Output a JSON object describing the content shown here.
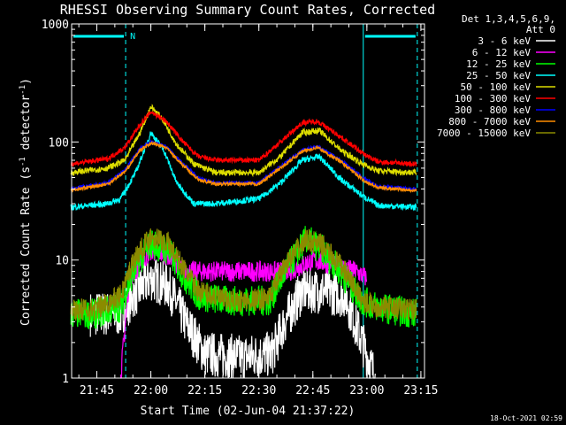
{
  "chart_data": {
    "type": "line",
    "title": "RHESSI Observing Summary Count Rates, Corrected",
    "xlabel": "Start Time (02-Jun-04 21:37:22)",
    "ylabel_prefix": "Corrected Count Rate (s",
    "ylabel_sup1": "-1",
    "ylabel_mid": " detector",
    "ylabel_sup2": "-1",
    "ylabel_suffix": ")",
    "yscale": "log",
    "ylim": [
      1,
      1000
    ],
    "xlim_minutes": [
      21.6333,
      23.2667
    ],
    "xticks": [
      {
        "label": "21:45",
        "value": 21.75
      },
      {
        "label": "22:00",
        "value": 22.0
      },
      {
        "label": "22:15",
        "value": 22.25
      },
      {
        "label": "22:30",
        "value": 22.5
      },
      {
        "label": "22:45",
        "value": 22.75
      },
      {
        "label": "23:00",
        "value": 23.0
      },
      {
        "label": "23:15",
        "value": 23.25
      }
    ],
    "yticks": [
      {
        "label": "1000",
        "value": 1000
      },
      {
        "label": "100",
        "value": 100
      },
      {
        "label": "10",
        "value": 10
      },
      {
        "label": "1",
        "value": 1
      }
    ],
    "legend_header": [
      "Det 1,3,4,5,6,9,",
      "Att 0"
    ],
    "legend_position": "top-right",
    "timestamp": "18-Oct-2021 02:59",
    "night_marker": "N",
    "night_intervals": [
      [
        21.6333,
        21.8833
      ],
      [
        22.9833,
        23.2333
      ]
    ],
    "vertical_lines": [
      21.6333,
      21.8833,
      22.9833,
      23.2333
    ],
    "series": [
      {
        "name": "3 - 6 keV",
        "color": "#ffffff",
        "key_x": [
          21.72,
          21.86,
          21.92,
          22.0,
          22.08,
          22.16,
          22.25,
          22.42,
          22.56,
          22.62,
          22.7,
          22.8,
          22.9,
          22.96,
          23.04
        ],
        "key_y": [
          3.5,
          3.5,
          5,
          7,
          6,
          3,
          1.6,
          1.5,
          1.6,
          3,
          5.5,
          5.5,
          5,
          2.5,
          1
        ]
      },
      {
        "name": "6 - 12 keV",
        "color": "#ff00ff",
        "key_x": [
          21.86,
          21.9,
          22.0,
          22.08,
          22.16,
          22.4,
          22.56,
          22.64,
          22.75,
          22.85,
          22.95,
          23.0
        ],
        "key_y": [
          1,
          7,
          12,
          11,
          8,
          8,
          8,
          8,
          10,
          9,
          8,
          7
        ]
      },
      {
        "name": "12 - 25 keV",
        "color": "#00ff00",
        "key_x": [
          21.63,
          21.74,
          21.86,
          21.92,
          22.0,
          22.08,
          22.16,
          22.22,
          22.35,
          22.45,
          22.55,
          22.62,
          22.72,
          22.8,
          22.9,
          22.98,
          23.05,
          23.23
        ],
        "key_y": [
          3.5,
          3.5,
          4,
          8,
          14,
          12,
          7,
          5,
          4.5,
          4.5,
          4.5,
          8,
          15,
          12,
          7,
          4.5,
          4,
          3.5
        ]
      },
      {
        "name": "25 - 50 keV",
        "color": "#00ffff",
        "key_x": [
          21.63,
          21.8,
          21.86,
          21.93,
          22.0,
          22.06,
          22.12,
          22.2,
          22.3,
          22.5,
          22.6,
          22.7,
          22.78,
          22.88,
          22.98,
          23.05,
          23.23
        ],
        "key_y": [
          28,
          30,
          33,
          55,
          120,
          85,
          45,
          30,
          30,
          33,
          45,
          70,
          75,
          48,
          35,
          29,
          28
        ]
      },
      {
        "name": "50 - 100 keV",
        "color": "#dddd00",
        "key_x": [
          21.63,
          21.8,
          21.88,
          21.95,
          22.0,
          22.05,
          22.12,
          22.2,
          22.3,
          22.5,
          22.6,
          22.7,
          22.78,
          22.88,
          22.98,
          23.05,
          23.23
        ],
        "key_y": [
          55,
          60,
          70,
          120,
          200,
          160,
          95,
          65,
          55,
          55,
          75,
          120,
          125,
          85,
          65,
          57,
          55
        ]
      },
      {
        "name": "100 - 300 keV",
        "color": "#ff0000",
        "key_x": [
          21.63,
          21.8,
          21.88,
          21.95,
          22.0,
          22.07,
          22.15,
          22.22,
          22.3,
          22.5,
          22.6,
          22.7,
          22.77,
          22.88,
          22.98,
          23.05,
          23.23
        ],
        "key_y": [
          65,
          72,
          90,
          140,
          180,
          150,
          100,
          75,
          70,
          70,
          100,
          145,
          150,
          110,
          80,
          68,
          65
        ]
      },
      {
        "name": "300 - 800 keV",
        "color": "#0000ff",
        "key_x": [
          21.63,
          21.8,
          21.88,
          21.95,
          22.0,
          22.07,
          22.15,
          22.22,
          22.3,
          22.5,
          22.6,
          22.7,
          22.77,
          22.88,
          22.98,
          23.05,
          23.23
        ],
        "key_y": [
          40,
          45,
          58,
          88,
          100,
          92,
          65,
          50,
          45,
          45,
          62,
          85,
          92,
          70,
          50,
          42,
          40
        ]
      },
      {
        "name": "800 - 7000 keV",
        "color": "#ff8c00",
        "key_x": [
          21.63,
          21.8,
          21.88,
          21.95,
          22.0,
          22.07,
          22.15,
          22.22,
          22.3,
          22.5,
          22.6,
          22.7,
          22.77,
          22.88,
          22.98,
          23.05,
          23.23
        ],
        "key_y": [
          39,
          44,
          56,
          85,
          98,
          90,
          63,
          48,
          44,
          44,
          60,
          83,
          90,
          68,
          48,
          41,
          39
        ]
      },
      {
        "name": "7000 - 15000 keV",
        "color": "#8b8b00",
        "key_x": [
          21.63,
          21.74,
          21.86,
          21.92,
          22.0,
          22.08,
          22.16,
          22.22,
          22.35,
          22.45,
          22.55,
          22.62,
          22.72,
          22.8,
          22.9,
          22.98,
          23.05,
          23.23
        ],
        "key_y": [
          3.8,
          3.8,
          5,
          10,
          16,
          14,
          8,
          5.5,
          4.5,
          4.5,
          4.8,
          9,
          15,
          13,
          8,
          4.5,
          4,
          3.8
        ]
      }
    ]
  }
}
